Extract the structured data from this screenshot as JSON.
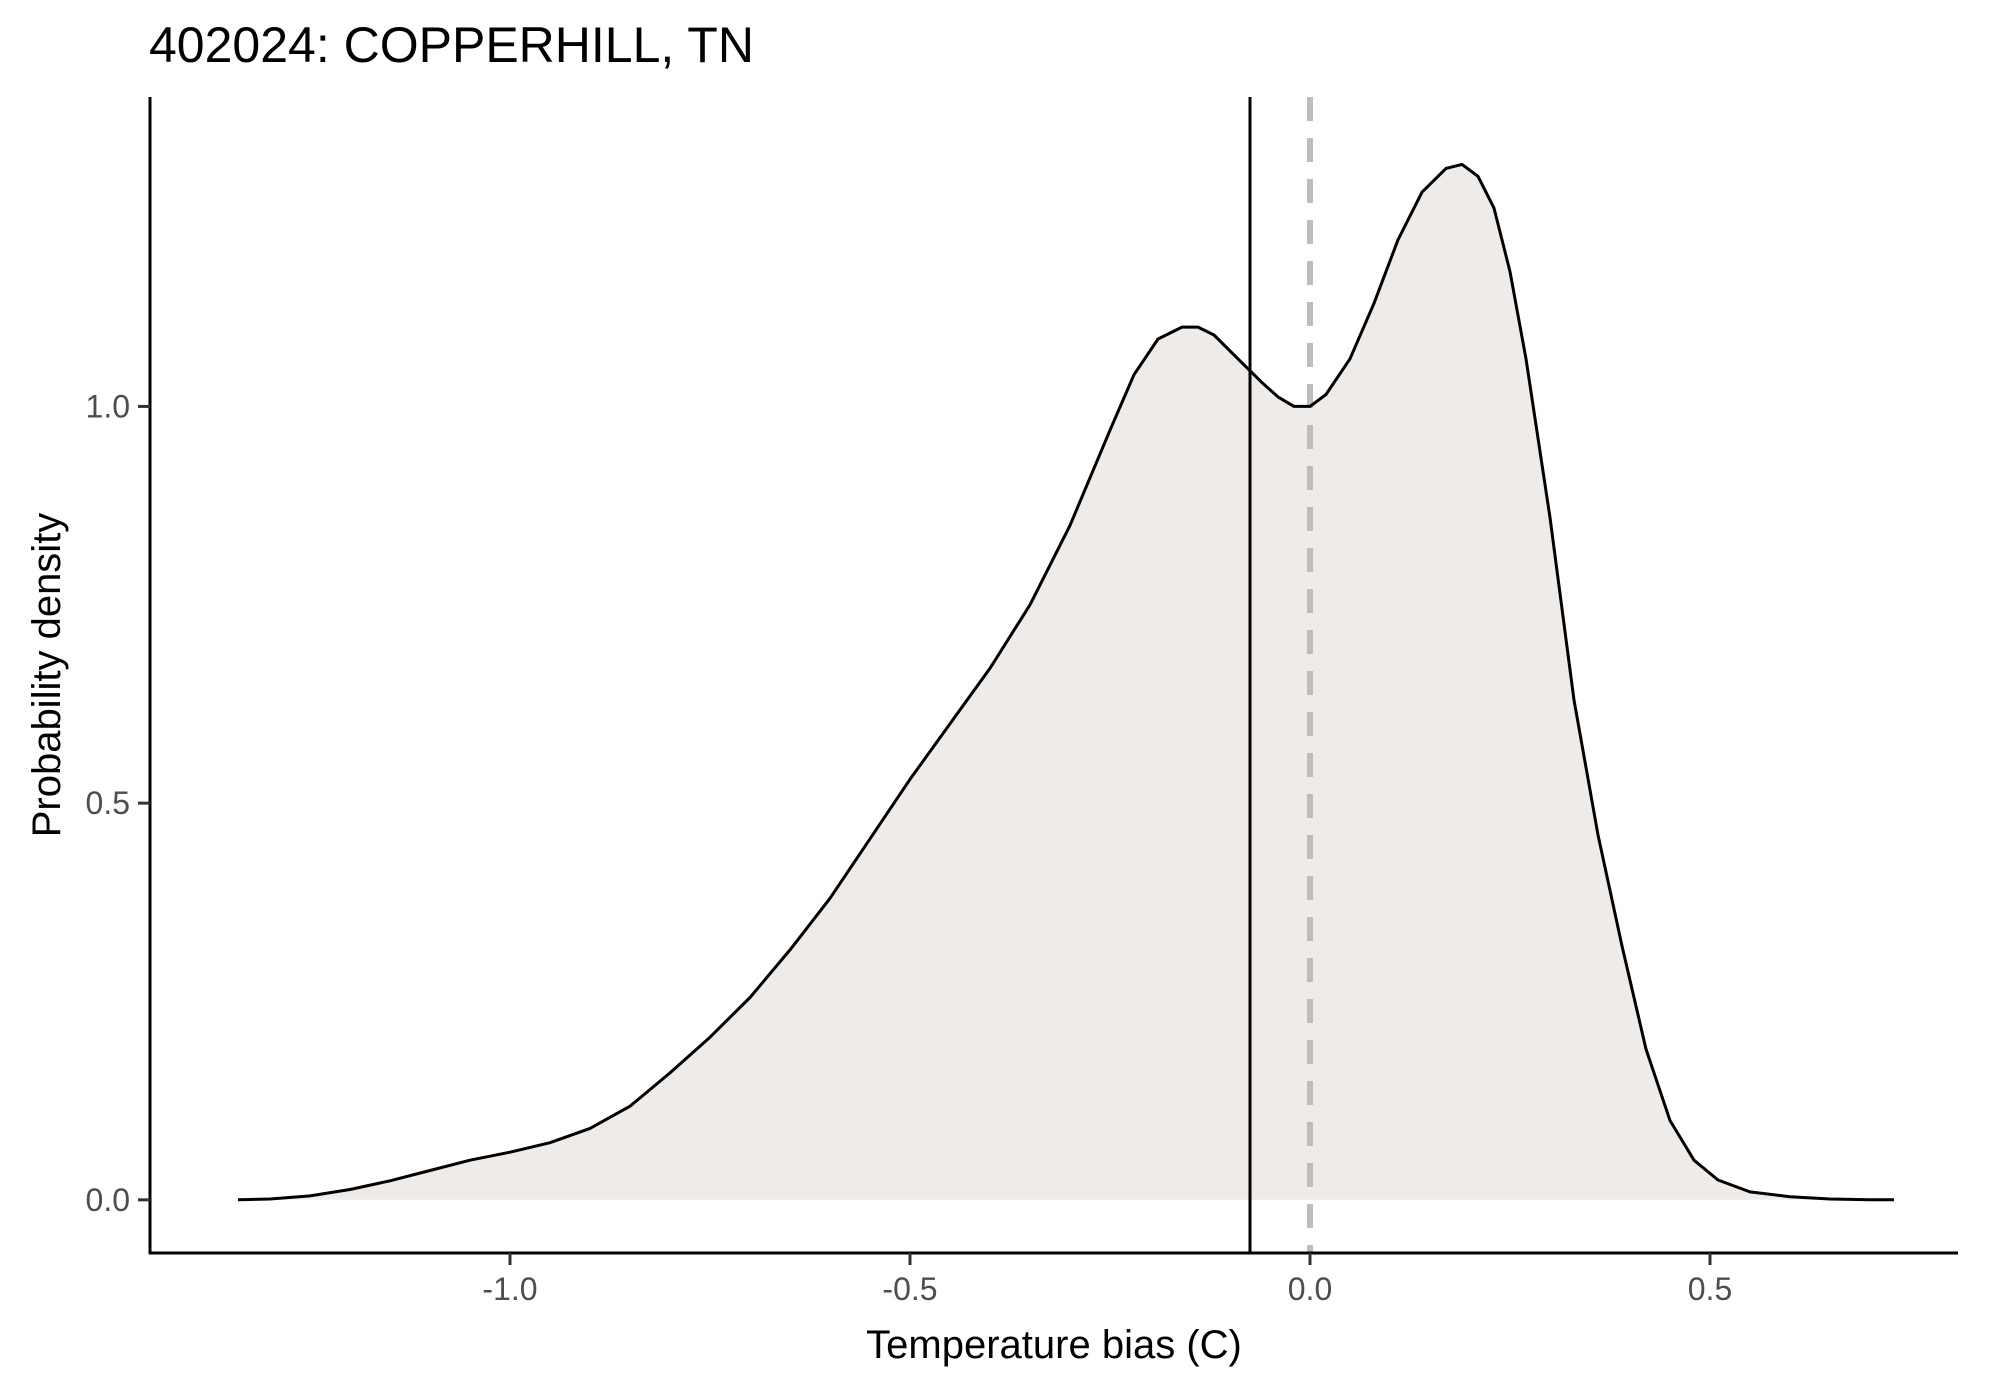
{
  "chart_data": {
    "type": "area",
    "title": "402024: COPPERHILL, TN",
    "xlabel": "Temperature bias (C)",
    "ylabel": "Probability density",
    "xlim": [
      -1.45,
      0.81
    ],
    "ylim": [
      -0.067,
      1.39
    ],
    "x_ticks": [
      -1.0,
      -0.5,
      0.0,
      0.5
    ],
    "x_tick_labels": [
      "-1.0",
      "-0.5",
      "0.0",
      "0.5"
    ],
    "y_ticks": [
      0.0,
      0.5,
      1.0
    ],
    "y_tick_labels": [
      "0.0",
      "0.5",
      "1.0"
    ],
    "grid": false,
    "legend": "none",
    "colors": {
      "fill": "#efebe9",
      "line": "#000000",
      "dashed_line": "#bdbdbd"
    },
    "reference_lines": [
      {
        "x": -0.075,
        "style": "solid",
        "color": "#000000"
      },
      {
        "x": 0.0,
        "style": "dashed",
        "color": "#bdbdbd"
      }
    ],
    "series": [
      {
        "x": [
          -1.34,
          -1.3,
          -1.25,
          -1.2,
          -1.15,
          -1.1,
          -1.05,
          -1.0,
          -0.95,
          -0.9,
          -0.85,
          -0.8,
          -0.75,
          -0.7,
          -0.65,
          -0.6,
          -0.55,
          -0.5,
          -0.45,
          -0.4,
          -0.35,
          -0.3,
          -0.25,
          -0.22,
          -0.19,
          -0.16,
          -0.14,
          -0.12,
          -0.1,
          -0.08,
          -0.06,
          -0.04,
          -0.02,
          0.0,
          0.02,
          0.05,
          0.08,
          0.11,
          0.14,
          0.17,
          0.19,
          0.21,
          0.23,
          0.25,
          0.27,
          0.3,
          0.33,
          0.36,
          0.39,
          0.42,
          0.45,
          0.48,
          0.51,
          0.55,
          0.6,
          0.65,
          0.7,
          0.73
        ],
        "y": [
          0.0,
          0.001,
          0.005,
          0.013,
          0.024,
          0.037,
          0.05,
          0.06,
          0.072,
          0.09,
          0.118,
          0.16,
          0.205,
          0.255,
          0.315,
          0.38,
          0.455,
          0.53,
          0.6,
          0.67,
          0.75,
          0.85,
          0.97,
          1.04,
          1.085,
          1.1,
          1.1,
          1.09,
          1.07,
          1.05,
          1.03,
          1.012,
          1.0,
          1.0,
          1.015,
          1.06,
          1.13,
          1.21,
          1.27,
          1.3,
          1.305,
          1.29,
          1.25,
          1.17,
          1.06,
          0.86,
          0.63,
          0.46,
          0.32,
          0.19,
          0.1,
          0.05,
          0.025,
          0.01,
          0.004,
          0.001,
          0.0,
          0.0
        ]
      }
    ]
  }
}
